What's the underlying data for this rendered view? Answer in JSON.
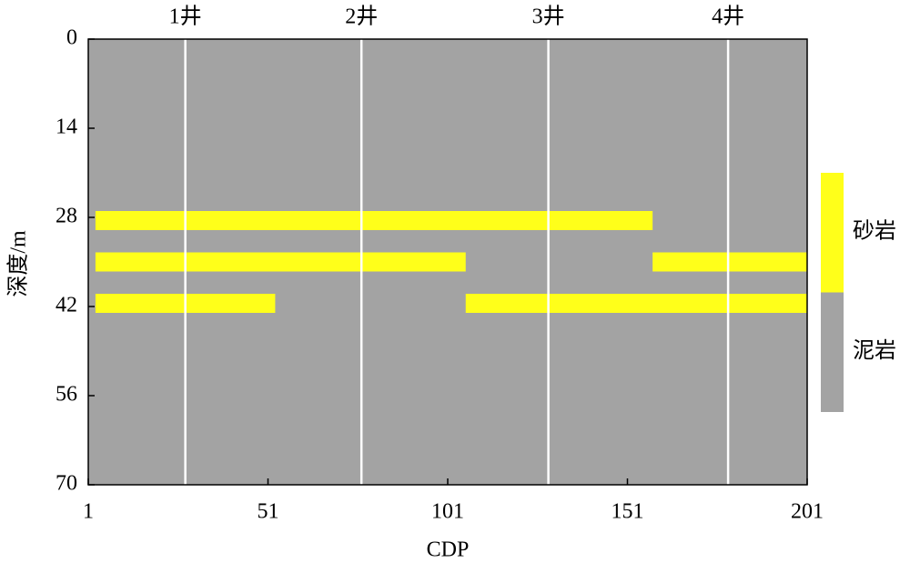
{
  "chart_data": {
    "type": "lithology-section",
    "x_label": "CDP",
    "y_label": "深度/m",
    "xlim": [
      1,
      201
    ],
    "xticks": [
      1,
      51,
      101,
      151,
      201
    ],
    "ylim": [
      0,
      70
    ],
    "yticks": [
      0,
      14,
      28,
      42,
      56,
      70
    ],
    "y_inverted": true,
    "wells": [
      {
        "label": "1井",
        "cdp": 28
      },
      {
        "label": "2井",
        "cdp": 77
      },
      {
        "label": "3井",
        "cdp": 129
      },
      {
        "label": "4井",
        "cdp": 179
      }
    ],
    "well_color": "#ffffff",
    "legend": [
      {
        "label": "砂岩",
        "color": "#ffff1a"
      },
      {
        "label": "泥岩",
        "color": "#a3a3a3"
      }
    ],
    "sand_bodies": [
      {
        "cdp": [
          3,
          158
        ],
        "depth": [
          27,
          30
        ]
      },
      {
        "cdp": [
          3,
          106
        ],
        "depth": [
          33.5,
          36.5
        ]
      },
      {
        "cdp": [
          158,
          201
        ],
        "depth": [
          33.5,
          36.5
        ]
      },
      {
        "cdp": [
          3,
          53
        ],
        "depth": [
          40,
          43
        ]
      },
      {
        "cdp": [
          106,
          201
        ],
        "depth": [
          40,
          43
        ]
      }
    ]
  }
}
